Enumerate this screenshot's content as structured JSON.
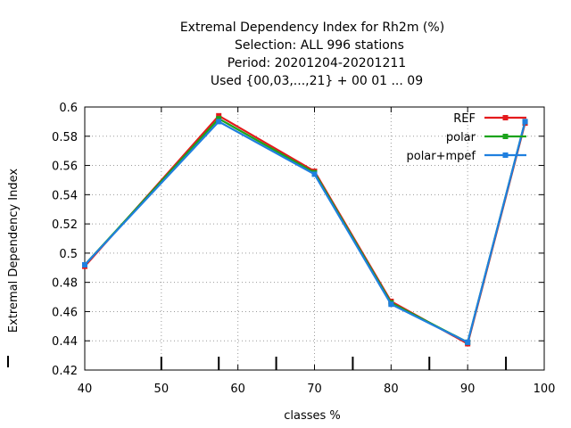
{
  "chart_data": {
    "type": "line",
    "title_lines": [
      "Extremal Dependency Index  for Rh2m (%)",
      "Selection: ALL    996 stations",
      "Period: 20201204-20201211",
      "Used {00,03,...,21} + 00 01 ... 09"
    ],
    "xlabel": "classes %",
    "ylabel": "Extremal Dependency Index",
    "xlim": [
      40,
      100
    ],
    "ylim": [
      0.42,
      0.6
    ],
    "x_ticks": [
      40,
      50,
      60,
      70,
      80,
      90,
      100
    ],
    "y_ticks": [
      0.42,
      0.44,
      0.46,
      0.48,
      0.5,
      0.52,
      0.54,
      0.56,
      0.58,
      0.6
    ],
    "x_tick_labels": [
      "40",
      "50",
      "60",
      "70",
      "80",
      "90",
      "100"
    ],
    "y_tick_labels": [
      "0.42",
      "0.44",
      "0.46",
      "0.48",
      "0.5",
      "0.52",
      "0.54",
      "0.56",
      "0.58",
      "0.6"
    ],
    "grid": true,
    "legend_position": "top-right",
    "x": [
      40,
      57.5,
      70,
      80,
      90,
      97.5
    ],
    "series": [
      {
        "name": "REF",
        "color": "#e41a1c",
        "values": [
          0.491,
          0.594,
          0.556,
          0.467,
          0.438,
          0.589
        ]
      },
      {
        "name": "polar",
        "color": "#1ca31c",
        "values": [
          0.492,
          0.592,
          0.555,
          0.466,
          0.439,
          0.59
        ]
      },
      {
        "name": "polar+mpef",
        "color": "#1f7fdf",
        "values": [
          0.492,
          0.59,
          0.554,
          0.465,
          0.439,
          0.59
        ]
      }
    ]
  }
}
